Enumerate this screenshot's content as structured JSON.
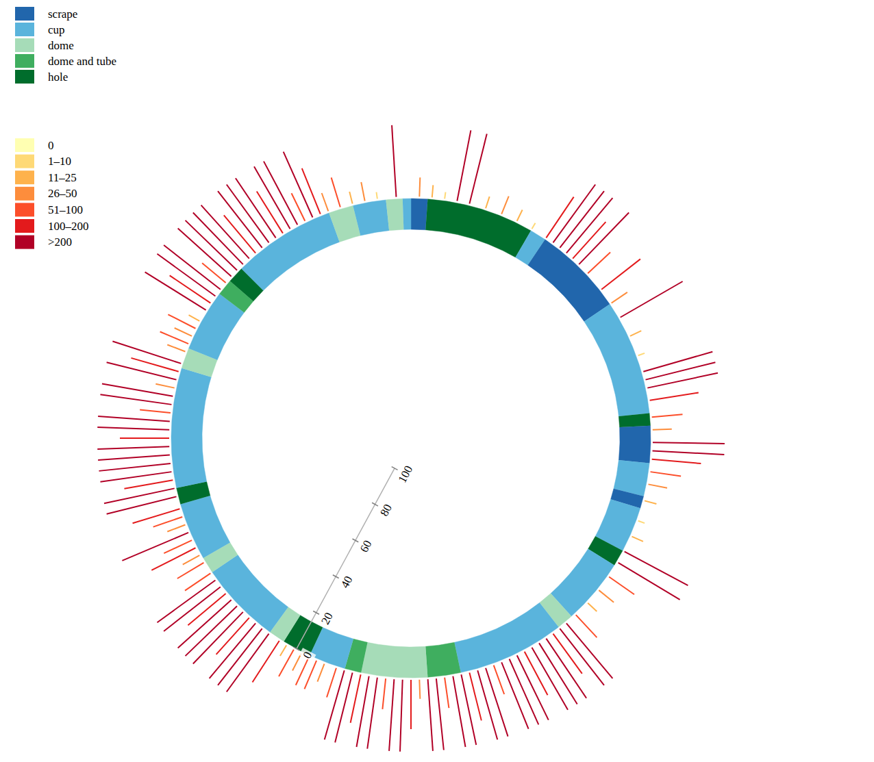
{
  "chart_data": {
    "type": "circular_tree",
    "rlim": [
      0,
      100
    ],
    "rticks": [
      0,
      20,
      40,
      60,
      80,
      100
    ],
    "nest_types": {
      "names": [
        "scrape",
        "cup",
        "dome",
        "dome and tube",
        "hole"
      ],
      "colors": [
        "#2166ac",
        "#5ab4dc",
        "#a6dcb8",
        "#3fae5f",
        "#006d2c"
      ]
    },
    "count_classes": {
      "names": [
        "0",
        "1–10",
        "11–25",
        "26–50",
        "51–100",
        "100–200",
        ">200"
      ],
      "colors": [
        "#ffffb2",
        "#fed976",
        "#feb24c",
        "#fd8d3c",
        "#fc4e2a",
        "#e31a1c",
        "#b10026"
      ]
    },
    "nest_segments": [
      {
        "start": 0,
        "end": 4,
        "nest": "scrape"
      },
      {
        "start": 4,
        "end": 30,
        "nest": "hole"
      },
      {
        "start": 30,
        "end": 34,
        "nest": "cup"
      },
      {
        "start": 34,
        "end": 56,
        "nest": "scrape"
      },
      {
        "start": 56,
        "end": 84,
        "nest": "cup"
      },
      {
        "start": 84,
        "end": 87,
        "nest": "hole"
      },
      {
        "start": 87,
        "end": 96,
        "nest": "scrape"
      },
      {
        "start": 96,
        "end": 104,
        "nest": "cup"
      },
      {
        "start": 104,
        "end": 107,
        "nest": "scrape"
      },
      {
        "start": 107,
        "end": 118,
        "nest": "cup"
      },
      {
        "start": 118,
        "end": 122,
        "nest": "hole"
      },
      {
        "start": 122,
        "end": 138,
        "nest": "cup"
      },
      {
        "start": 138,
        "end": 142,
        "nest": "dome"
      },
      {
        "start": 142,
        "end": 168,
        "nest": "cup"
      },
      {
        "start": 168,
        "end": 176,
        "nest": "dome and tube"
      },
      {
        "start": 176,
        "end": 192,
        "nest": "dome"
      },
      {
        "start": 192,
        "end": 196,
        "nest": "dome and tube"
      },
      {
        "start": 196,
        "end": 205,
        "nest": "cup"
      },
      {
        "start": 205,
        "end": 212,
        "nest": "hole"
      },
      {
        "start": 212,
        "end": 216,
        "nest": "dome"
      },
      {
        "start": 216,
        "end": 236,
        "nest": "cup"
      },
      {
        "start": 236,
        "end": 240,
        "nest": "dome"
      },
      {
        "start": 240,
        "end": 254,
        "nest": "cup"
      },
      {
        "start": 254,
        "end": 258,
        "nest": "hole"
      },
      {
        "start": 258,
        "end": 287,
        "nest": "cup"
      },
      {
        "start": 287,
        "end": 292,
        "nest": "dome"
      },
      {
        "start": 292,
        "end": 307,
        "nest": "cup"
      },
      {
        "start": 307,
        "end": 311,
        "nest": "dome and tube"
      },
      {
        "start": 311,
        "end": 315,
        "nest": "hole"
      },
      {
        "start": 315,
        "end": 340,
        "nest": "cup"
      },
      {
        "start": 340,
        "end": 346,
        "nest": "dome"
      },
      {
        "start": 346,
        "end": 354,
        "nest": "cup"
      },
      {
        "start": 354,
        "end": 358,
        "nest": "dome"
      },
      {
        "start": 358,
        "end": 360,
        "nest": "cup"
      }
    ],
    "bars": {
      "theta": [
        356.5,
        2,
        5,
        8,
        11,
        14,
        18,
        22,
        26,
        30,
        34,
        36,
        38,
        40,
        42,
        44,
        47,
        52,
        56,
        60,
        65,
        70,
        74,
        76,
        78,
        81,
        85,
        88,
        91,
        93,
        95,
        98,
        101,
        105,
        110,
        114,
        118,
        121,
        125,
        129,
        133,
        137,
        140,
        142,
        144,
        146,
        148,
        150,
        152,
        154,
        156,
        158,
        160,
        162,
        164,
        166,
        168,
        170,
        172,
        174,
        176,
        178,
        180,
        182,
        184,
        186,
        188,
        190,
        192,
        194,
        196,
        198,
        201,
        203,
        205,
        207,
        209,
        211,
        213,
        216,
        218,
        220,
        222,
        224,
        226,
        228,
        230,
        232,
        234,
        236,
        239,
        241,
        243,
        245,
        247,
        249,
        251,
        253,
        256,
        258,
        260,
        262,
        264,
        266,
        268,
        270,
        272,
        274,
        276,
        278,
        280,
        282,
        284,
        286,
        288,
        291,
        293,
        295,
        297,
        299,
        302,
        304,
        306,
        308,
        310,
        312,
        314,
        316,
        318,
        320,
        322,
        324,
        326,
        328,
        330,
        332,
        334,
        336,
        338,
        340,
        343,
        346,
        349,
        352
      ],
      "count_class": [
        ">200",
        "26–50",
        "11–25",
        "1–10",
        ">200",
        ">200",
        "11–25",
        "26–50",
        "11–25",
        "1–10",
        "100–200",
        ">200",
        ">200",
        ">200",
        "100–200",
        ">200",
        "51–100",
        "100–200",
        "26–50",
        ">200",
        "11–25",
        "1–10",
        ">200",
        ">200",
        ">200",
        "100–200",
        "51–100",
        "26–50",
        ">200",
        ">200",
        "100–200",
        "51–100",
        "26–50",
        "11–25",
        "1–10",
        "11–25",
        ">200",
        ">200",
        "51–100",
        "26–50",
        "11–25",
        "51–100",
        ">200",
        ">200",
        "100–200",
        ">200",
        ">200",
        ">200",
        "100–200",
        ">200",
        ">200",
        ">200",
        "51–100",
        ">200",
        ">200",
        "100–200",
        ">200",
        ">200",
        "51–100",
        ">200",
        ">200",
        "26–50",
        "100–200",
        ">200",
        ">200",
        "51–100",
        ">200",
        ">200",
        "100–200",
        ">200",
        ">200",
        "51–100",
        "26–50",
        "51–100",
        "51–100",
        "26–50",
        "51–100",
        "11–25",
        "100–200",
        ">200",
        ">200",
        ">200",
        "100–200",
        ">200",
        ">200",
        ">200",
        "100–200",
        ">200",
        ">200",
        "51–100",
        "51–100",
        "26–50",
        "100–200",
        "51–100",
        ">200",
        "26–50",
        "51–100",
        "100–200",
        ">200",
        ">200",
        "100–200",
        ">200",
        ">200",
        ">200",
        ">200",
        "100–200",
        ">200",
        ">200",
        "51–100",
        ">200",
        ">200",
        "26–50",
        ">200",
        "100–200",
        ">200",
        "26–50",
        "51–100",
        "26–50",
        "51–100",
        "11–25",
        ">200",
        "100–200",
        ">200",
        ">200",
        "51–100",
        ">200",
        ">200",
        ">200",
        ">200",
        "100–200",
        ">200",
        ">200",
        ">200",
        "100–200",
        ">200",
        ">200",
        "51–100",
        ">200",
        "100–200",
        "26–50",
        "51–100",
        "11–25",
        "26–50",
        "1–10"
      ]
    }
  }
}
